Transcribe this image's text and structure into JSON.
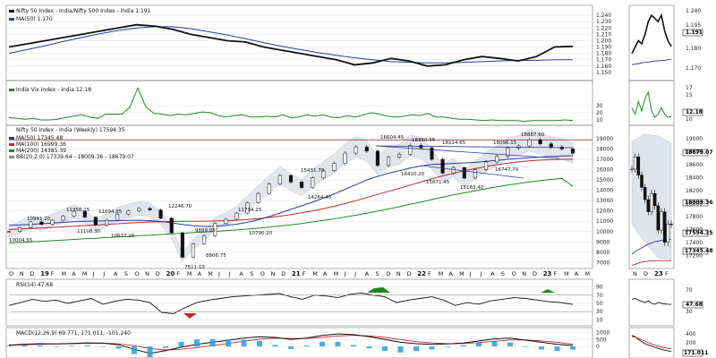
{
  "chart_data": [
    {
      "type": "line",
      "title": "Nifty 50 Index - India/Nifty 500 Index - India 1.191",
      "legend": [
        "MA(50) 1.170"
      ],
      "ylim": [
        1.14,
        1.25
      ],
      "ticks": [
        "1.240",
        "1.230",
        "1.220",
        "1.210",
        "1.200",
        "1.190",
        "1.180",
        "1.170",
        "1.160",
        "1.150"
      ],
      "series": [
        {
          "name": "Nifty 50 Index - India/Nifty 500 Index - India",
          "values": [
            1.19,
            1.195,
            1.2,
            1.205,
            1.21,
            1.215,
            1.22,
            1.225,
            1.223,
            1.218,
            1.21,
            1.205,
            1.2,
            1.198,
            1.19,
            1.185,
            1.18,
            1.175,
            1.17,
            1.162,
            1.165,
            1.172,
            1.168,
            1.16,
            1.162,
            1.17,
            1.175,
            1.172,
            1.168,
            1.175,
            1.19,
            1.191
          ]
        },
        {
          "name": "MA(50)",
          "values": [
            1.18,
            1.186,
            1.192,
            1.199,
            1.205,
            1.211,
            1.216,
            1.22,
            1.222,
            1.222,
            1.219,
            1.214,
            1.209,
            1.203,
            1.197,
            1.191,
            1.186,
            1.181,
            1.177,
            1.173,
            1.17,
            1.167,
            1.166,
            1.165,
            1.165,
            1.166,
            1.167,
            1.168,
            1.169,
            1.169,
            1.17,
            1.17
          ]
        }
      ]
    },
    {
      "type": "line",
      "title": "India Vix Index - India 12.18",
      "ticks": [
        "17",
        "15",
        "12.18",
        "10"
      ],
      "series": [
        {
          "name": "India Vix Index - India",
          "values": [
            16,
            15,
            14,
            15,
            13,
            13,
            14,
            16,
            18,
            20,
            17,
            15,
            21,
            21,
            21,
            30,
            57,
            31,
            22,
            21,
            19,
            21,
            20,
            22,
            24,
            23,
            19,
            17,
            19,
            20,
            17,
            17,
            18,
            17,
            20,
            16,
            17,
            20,
            18,
            20,
            17,
            16,
            19,
            17,
            20,
            23,
            21,
            18,
            17,
            18,
            20,
            19,
            22,
            17,
            17,
            15,
            14,
            14,
            13,
            12,
            13,
            12,
            12,
            12,
            11,
            12,
            12,
            12,
            12,
            13,
            12.18
          ]
        }
      ]
    },
    {
      "type": "line",
      "title": "Nifty 50 Index - India (Weekly) 17594.35",
      "legend": [
        "MA(50) 17345.48",
        "MA(100) 16999.36",
        "MA(200) 14385.39",
        "BB(20,2.0) 17339.64 - 18009.36 - 18679.07"
      ],
      "ylim": [
        6600,
        19600
      ],
      "ticks": [
        "19000",
        "18000",
        "17000",
        "16000",
        "15000",
        "14000",
        "13000",
        "12000",
        "11000",
        "10000",
        "9000",
        "8000",
        "7000"
      ],
      "right_ticks": [
        "19000",
        "18800",
        "18600",
        "18400",
        "18200",
        "18000",
        "17800",
        "17600",
        "17400",
        "17200"
      ],
      "annotations": [
        "10004.55",
        "10941.20",
        "11108.30",
        "11956.15",
        "10637.15",
        "11694.85",
        "12246.70",
        "9889.05",
        "7511.10",
        "8806.75",
        "10790.20",
        "11794.25",
        "15431.75",
        "14264.40",
        "16604.45",
        "18350.95",
        "18114.65",
        "16410.20",
        "15671.45",
        "15183.40",
        "16747.70",
        "18096.15",
        "18887.60"
      ],
      "series": [
        {
          "name": "Nifty 50 Index - India (Weekly)",
          "values": [
            10004.55,
            10400,
            10941.2,
            10700,
            11108.3,
            11500,
            11956.15,
            11400,
            10637.15,
            11100,
            11694.85,
            12000,
            12246.7,
            12100,
            11300,
            9889.05,
            7511.1,
            8806.75,
            9600,
            10790.2,
            11200,
            11794.25,
            12800,
            13700,
            14600,
            15431.75,
            14800,
            14264.4,
            15200,
            15900,
            16604.45,
            17600,
            18200,
            17800,
            16410.2,
            17200,
            17500,
            18350.95,
            18114.65,
            17000,
            15671.45,
            16200,
            15183.4,
            16000,
            16747.7,
            17300,
            18096.15,
            18300,
            18887.6,
            18500,
            18200,
            18000,
            17594.35
          ]
        },
        {
          "name": "MA(50)",
          "values": [
            10600,
            10650,
            10700,
            10760,
            10820,
            10900,
            10960,
            11000,
            11020,
            11040,
            11060,
            11080,
            11100,
            11060,
            10980,
            10850,
            10700,
            10560,
            10500,
            10520,
            10600,
            10720,
            10900,
            11150,
            11450,
            11800,
            12150,
            12500,
            12850,
            13250,
            13650,
            14100,
            14550,
            15000,
            15350,
            15650,
            15900,
            16150,
            16350,
            16500,
            16550,
            16600,
            16650,
            16700,
            16800,
            16900,
            17000,
            17080,
            17150,
            17220,
            17280,
            17320,
            17345.48
          ]
        },
        {
          "name": "MA(100)",
          "values": [
            10200,
            10250,
            10300,
            10350,
            10400,
            10460,
            10520,
            10580,
            10640,
            10700,
            10760,
            10820,
            10880,
            10930,
            10960,
            10980,
            10990,
            11000,
            11010,
            11030,
            11060,
            11100,
            11170,
            11260,
            11370,
            11500,
            11650,
            11820,
            12010,
            12220,
            12460,
            12720,
            13000,
            13300,
            13600,
            13900,
            14200,
            14500,
            14800,
            15100,
            15400,
            15650,
            15900,
            16100,
            16300,
            16480,
            16620,
            16750,
            16850,
            16920,
            16960,
            16990,
            16999.36
          ]
        },
        {
          "name": "MA(200)",
          "values": [
            8900,
            8950,
            9000,
            9060,
            9120,
            9180,
            9240,
            9300,
            9360,
            9420,
            9480,
            9540,
            9600,
            9660,
            9720,
            9780,
            9840,
            9900,
            9960,
            10020,
            10090,
            10160,
            10240,
            10330,
            10430,
            10540,
            10660,
            10790,
            10930,
            11080,
            11240,
            11410,
            11590,
            11780,
            11980,
            12190,
            12410,
            12640,
            12870,
            13100,
            13330,
            13550,
            13760,
            13960,
            14150,
            14330,
            14500,
            14660,
            14800,
            14930,
            15050,
            15150,
            14385.39
          ]
        }
      ]
    },
    {
      "type": "line",
      "title": "RSI(14) 47.68",
      "ylim": [
        0,
        100
      ],
      "ticks": [
        "90",
        "70",
        "50",
        "30",
        "10"
      ],
      "right_ticks": [
        "70",
        "47.68",
        "30"
      ],
      "series": [
        {
          "name": "RSI(14)",
          "values": [
            45,
            52,
            60,
            55,
            58,
            50,
            56,
            62,
            48,
            55,
            60,
            58,
            52,
            28,
            25,
            40,
            52,
            58,
            62,
            66,
            68,
            70,
            72,
            74,
            66,
            60,
            70,
            68,
            64,
            72,
            75,
            70,
            66,
            52,
            58,
            62,
            66,
            58,
            45,
            52,
            48,
            56,
            60,
            64,
            62,
            58,
            54,
            52,
            47.68
          ]
        }
      ]
    },
    {
      "type": "line",
      "title": "MACD(12,26,9) 69.771, 171.011, -101.240",
      "ticks": [
        "1000",
        "500",
        "0"
      ],
      "right_ticks": [
        "400",
        "200",
        "171.011",
        "0"
      ],
      "series": [
        {
          "name": "MACD",
          "values": [
            100,
            160,
            200,
            180,
            220,
            260,
            240,
            120,
            -200,
            -500,
            -300,
            -50,
            150,
            300,
            450,
            600,
            700,
            650,
            500,
            600,
            800,
            900,
            850,
            700,
            500,
            300,
            200,
            150,
            180,
            250,
            400,
            550,
            600,
            450,
            300,
            150,
            69.771
          ]
        },
        {
          "name": "Signal",
          "values": [
            80,
            120,
            160,
            180,
            200,
            230,
            240,
            190,
            50,
            -150,
            -250,
            -200,
            -80,
            60,
            220,
            380,
            520,
            600,
            580,
            570,
            650,
            750,
            800,
            760,
            650,
            500,
            350,
            250,
            200,
            210,
            280,
            380,
            470,
            470,
            400,
            300,
            171.011
          ]
        }
      ]
    }
  ],
  "time_axis": {
    "months": [
      "O",
      "N",
      "D",
      "19",
      "F",
      "M",
      "A",
      "M",
      "J",
      "J",
      "A",
      "S",
      "O",
      "N",
      "D",
      "20",
      "F",
      "M",
      "A",
      "M",
      "J",
      "J",
      "A",
      "S",
      "O",
      "N",
      "D",
      "21",
      "F",
      "M",
      "A",
      "M",
      "J",
      "J",
      "A",
      "S",
      "O",
      "N",
      "D",
      "22",
      "F",
      "M",
      "A",
      "M",
      "J",
      "J",
      "A",
      "S",
      "O",
      "N",
      "D",
      "23",
      "F",
      "M",
      "A",
      "M"
    ],
    "inset_months": [
      "N",
      "D",
      "23",
      "F"
    ]
  },
  "colors": {
    "price": "#111111",
    "ma50": "#2a3a9e",
    "ma100": "#c0282d",
    "ma200": "#1e8a1e",
    "vix": "#1e8a1e",
    "bb_fill": "#dfe3ea",
    "macd_hist": "#2a9fd6",
    "rsi_fill": "#1e8a1e",
    "rsi_low_fill": "#c0282d",
    "panel_border": "#666666"
  }
}
